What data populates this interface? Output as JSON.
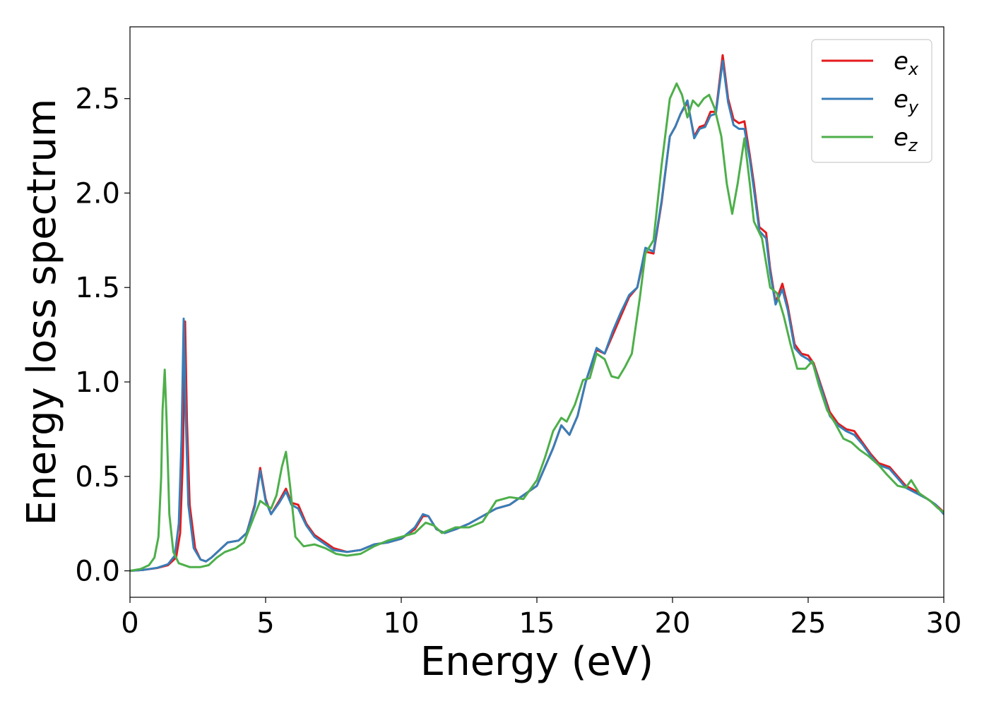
{
  "chart_data": {
    "type": "line",
    "xlabel": "Energy (eV)",
    "ylabel": "Energy loss spectrum",
    "xlim": [
      0,
      30
    ],
    "ylim": [
      -0.14,
      2.88
    ],
    "x_ticks": [
      0,
      5,
      10,
      15,
      20,
      25,
      30
    ],
    "y_ticks": [
      0.0,
      0.5,
      1.0,
      1.5,
      2.0,
      2.5
    ],
    "x_tick_labels": [
      "0",
      "5",
      "10",
      "15",
      "20",
      "25",
      "30"
    ],
    "y_tick_labels": [
      "0.0",
      "0.5",
      "1.0",
      "1.5",
      "2.0",
      "2.5"
    ],
    "grid": false,
    "legend_placement": "top-right",
    "series": [
      {
        "name": "e_x",
        "label_base": "e",
        "label_sub": "x",
        "color": "#e41a1c",
        "points": [
          [
            0.0,
            0.0
          ],
          [
            0.5,
            0.005
          ],
          [
            1.0,
            0.015
          ],
          [
            1.4,
            0.03
          ],
          [
            1.7,
            0.07
          ],
          [
            1.85,
            0.2
          ],
          [
            1.95,
            0.6
          ],
          [
            2.03,
            1.32
          ],
          [
            2.1,
            0.8
          ],
          [
            2.2,
            0.35
          ],
          [
            2.4,
            0.12
          ],
          [
            2.6,
            0.06
          ],
          [
            2.8,
            0.05
          ],
          [
            3.0,
            0.07
          ],
          [
            3.3,
            0.11
          ],
          [
            3.6,
            0.15
          ],
          [
            4.0,
            0.16
          ],
          [
            4.3,
            0.2
          ],
          [
            4.6,
            0.35
          ],
          [
            4.8,
            0.545
          ],
          [
            5.0,
            0.38
          ],
          [
            5.2,
            0.3
          ],
          [
            5.5,
            0.37
          ],
          [
            5.75,
            0.435
          ],
          [
            5.95,
            0.36
          ],
          [
            6.2,
            0.35
          ],
          [
            6.5,
            0.25
          ],
          [
            6.8,
            0.19
          ],
          [
            7.2,
            0.15
          ],
          [
            7.5,
            0.12
          ],
          [
            8.0,
            0.1
          ],
          [
            8.5,
            0.11
          ],
          [
            9.0,
            0.14
          ],
          [
            9.5,
            0.15
          ],
          [
            10.0,
            0.17
          ],
          [
            10.5,
            0.22
          ],
          [
            10.8,
            0.29
          ],
          [
            11.0,
            0.29
          ],
          [
            11.3,
            0.22
          ],
          [
            11.6,
            0.2
          ],
          [
            12.0,
            0.22
          ],
          [
            12.5,
            0.25
          ],
          [
            13.0,
            0.29
          ],
          [
            13.5,
            0.33
          ],
          [
            14.0,
            0.35
          ],
          [
            14.5,
            0.4
          ],
          [
            15.0,
            0.45
          ],
          [
            15.3,
            0.55
          ],
          [
            15.6,
            0.65
          ],
          [
            15.9,
            0.77
          ],
          [
            16.2,
            0.72
          ],
          [
            16.5,
            0.82
          ],
          [
            16.8,
            1.0
          ],
          [
            17.2,
            1.17
          ],
          [
            17.5,
            1.15
          ],
          [
            17.8,
            1.25
          ],
          [
            18.1,
            1.35
          ],
          [
            18.4,
            1.45
          ],
          [
            18.7,
            1.5
          ],
          [
            19.0,
            1.69
          ],
          [
            19.3,
            1.68
          ],
          [
            19.6,
            1.95
          ],
          [
            19.9,
            2.3
          ],
          [
            20.1,
            2.35
          ],
          [
            20.3,
            2.42
          ],
          [
            20.55,
            2.48
          ],
          [
            20.8,
            2.3
          ],
          [
            21.0,
            2.35
          ],
          [
            21.2,
            2.36
          ],
          [
            21.4,
            2.43
          ],
          [
            21.6,
            2.43
          ],
          [
            21.85,
            2.73
          ],
          [
            22.05,
            2.5
          ],
          [
            22.25,
            2.39
          ],
          [
            22.45,
            2.37
          ],
          [
            22.65,
            2.38
          ],
          [
            22.85,
            2.2
          ],
          [
            23.0,
            2.05
          ],
          [
            23.2,
            1.82
          ],
          [
            23.45,
            1.79
          ],
          [
            23.6,
            1.6
          ],
          [
            23.8,
            1.42
          ],
          [
            24.05,
            1.52
          ],
          [
            24.25,
            1.4
          ],
          [
            24.5,
            1.2
          ],
          [
            24.75,
            1.15
          ],
          [
            25.0,
            1.14
          ],
          [
            25.2,
            1.1
          ],
          [
            25.5,
            0.97
          ],
          [
            25.8,
            0.84
          ],
          [
            26.1,
            0.78
          ],
          [
            26.4,
            0.75
          ],
          [
            26.7,
            0.74
          ],
          [
            27.0,
            0.68
          ],
          [
            27.3,
            0.62
          ],
          [
            27.6,
            0.57
          ],
          [
            28.0,
            0.55
          ],
          [
            28.3,
            0.5
          ],
          [
            28.6,
            0.45
          ],
          [
            29.0,
            0.42
          ],
          [
            29.4,
            0.38
          ],
          [
            29.7,
            0.35
          ],
          [
            30.0,
            0.31
          ]
        ]
      },
      {
        "name": "e_y",
        "label_base": "e",
        "label_sub": "y",
        "color": "#377eb8",
        "points": [
          [
            0.0,
            0.0
          ],
          [
            0.5,
            0.005
          ],
          [
            1.0,
            0.016
          ],
          [
            1.4,
            0.035
          ],
          [
            1.65,
            0.08
          ],
          [
            1.8,
            0.25
          ],
          [
            1.9,
            0.7
          ],
          [
            1.98,
            1.335
          ],
          [
            2.06,
            0.8
          ],
          [
            2.15,
            0.35
          ],
          [
            2.35,
            0.12
          ],
          [
            2.6,
            0.06
          ],
          [
            2.8,
            0.05
          ],
          [
            3.0,
            0.07
          ],
          [
            3.3,
            0.11
          ],
          [
            3.6,
            0.15
          ],
          [
            4.0,
            0.16
          ],
          [
            4.3,
            0.2
          ],
          [
            4.6,
            0.34
          ],
          [
            4.8,
            0.53
          ],
          [
            5.0,
            0.37
          ],
          [
            5.2,
            0.3
          ],
          [
            5.5,
            0.36
          ],
          [
            5.75,
            0.42
          ],
          [
            5.95,
            0.35
          ],
          [
            6.2,
            0.33
          ],
          [
            6.5,
            0.24
          ],
          [
            6.8,
            0.18
          ],
          [
            7.2,
            0.14
          ],
          [
            7.5,
            0.11
          ],
          [
            8.0,
            0.1
          ],
          [
            8.5,
            0.11
          ],
          [
            9.0,
            0.14
          ],
          [
            9.5,
            0.15
          ],
          [
            10.0,
            0.17
          ],
          [
            10.5,
            0.23
          ],
          [
            10.8,
            0.3
          ],
          [
            11.0,
            0.29
          ],
          [
            11.3,
            0.22
          ],
          [
            11.6,
            0.2
          ],
          [
            12.0,
            0.22
          ],
          [
            12.5,
            0.25
          ],
          [
            13.0,
            0.29
          ],
          [
            13.5,
            0.33
          ],
          [
            14.0,
            0.35
          ],
          [
            14.5,
            0.4
          ],
          [
            15.0,
            0.45
          ],
          [
            15.3,
            0.55
          ],
          [
            15.6,
            0.65
          ],
          [
            15.9,
            0.77
          ],
          [
            16.2,
            0.72
          ],
          [
            16.5,
            0.82
          ],
          [
            16.8,
            1.0
          ],
          [
            17.2,
            1.18
          ],
          [
            17.5,
            1.15
          ],
          [
            17.8,
            1.27
          ],
          [
            18.1,
            1.37
          ],
          [
            18.4,
            1.46
          ],
          [
            18.7,
            1.5
          ],
          [
            19.0,
            1.71
          ],
          [
            19.3,
            1.69
          ],
          [
            19.6,
            1.96
          ],
          [
            19.9,
            2.3
          ],
          [
            20.1,
            2.35
          ],
          [
            20.3,
            2.42
          ],
          [
            20.55,
            2.49
          ],
          [
            20.8,
            2.29
          ],
          [
            21.0,
            2.34
          ],
          [
            21.2,
            2.35
          ],
          [
            21.4,
            2.41
          ],
          [
            21.6,
            2.42
          ],
          [
            21.85,
            2.7
          ],
          [
            22.05,
            2.48
          ],
          [
            22.25,
            2.36
          ],
          [
            22.45,
            2.34
          ],
          [
            22.65,
            2.34
          ],
          [
            22.85,
            2.18
          ],
          [
            23.0,
            2.02
          ],
          [
            23.2,
            1.8
          ],
          [
            23.45,
            1.76
          ],
          [
            23.6,
            1.58
          ],
          [
            23.8,
            1.41
          ],
          [
            24.05,
            1.49
          ],
          [
            24.25,
            1.38
          ],
          [
            24.5,
            1.18
          ],
          [
            24.75,
            1.14
          ],
          [
            25.0,
            1.12
          ],
          [
            25.2,
            1.09
          ],
          [
            25.5,
            0.96
          ],
          [
            25.8,
            0.82
          ],
          [
            26.1,
            0.77
          ],
          [
            26.4,
            0.74
          ],
          [
            26.7,
            0.72
          ],
          [
            27.0,
            0.67
          ],
          [
            27.3,
            0.61
          ],
          [
            27.6,
            0.56
          ],
          [
            28.0,
            0.54
          ],
          [
            28.3,
            0.49
          ],
          [
            28.6,
            0.44
          ],
          [
            29.0,
            0.41
          ],
          [
            29.4,
            0.38
          ],
          [
            29.7,
            0.35
          ],
          [
            30.0,
            0.3
          ]
        ]
      },
      {
        "name": "e_z",
        "label_base": "e",
        "label_sub": "z",
        "color": "#4daf4a",
        "points": [
          [
            0.0,
            0.0
          ],
          [
            0.4,
            0.01
          ],
          [
            0.7,
            0.03
          ],
          [
            0.9,
            0.07
          ],
          [
            1.05,
            0.18
          ],
          [
            1.15,
            0.5
          ],
          [
            1.2,
            0.85
          ],
          [
            1.28,
            1.065
          ],
          [
            1.35,
            0.8
          ],
          [
            1.45,
            0.3
          ],
          [
            1.6,
            0.1
          ],
          [
            1.8,
            0.04
          ],
          [
            2.2,
            0.02
          ],
          [
            2.6,
            0.02
          ],
          [
            2.9,
            0.03
          ],
          [
            3.2,
            0.07
          ],
          [
            3.5,
            0.1
          ],
          [
            3.9,
            0.12
          ],
          [
            4.2,
            0.15
          ],
          [
            4.5,
            0.26
          ],
          [
            4.8,
            0.37
          ],
          [
            5.0,
            0.35
          ],
          [
            5.2,
            0.33
          ],
          [
            5.4,
            0.4
          ],
          [
            5.6,
            0.55
          ],
          [
            5.75,
            0.63
          ],
          [
            5.9,
            0.45
          ],
          [
            6.1,
            0.18
          ],
          [
            6.4,
            0.13
          ],
          [
            6.8,
            0.14
          ],
          [
            7.2,
            0.12
          ],
          [
            7.6,
            0.09
          ],
          [
            8.0,
            0.08
          ],
          [
            8.5,
            0.09
          ],
          [
            9.0,
            0.13
          ],
          [
            9.5,
            0.16
          ],
          [
            10.0,
            0.18
          ],
          [
            10.5,
            0.2
          ],
          [
            10.9,
            0.255
          ],
          [
            11.2,
            0.24
          ],
          [
            11.5,
            0.2
          ],
          [
            12.0,
            0.23
          ],
          [
            12.5,
            0.23
          ],
          [
            13.0,
            0.26
          ],
          [
            13.5,
            0.37
          ],
          [
            14.0,
            0.39
          ],
          [
            14.5,
            0.38
          ],
          [
            15.0,
            0.48
          ],
          [
            15.3,
            0.6
          ],
          [
            15.6,
            0.74
          ],
          [
            15.9,
            0.81
          ],
          [
            16.1,
            0.79
          ],
          [
            16.4,
            0.88
          ],
          [
            16.7,
            1.01
          ],
          [
            16.95,
            1.02
          ],
          [
            17.2,
            1.15
          ],
          [
            17.5,
            1.12
          ],
          [
            17.75,
            1.03
          ],
          [
            18.0,
            1.02
          ],
          [
            18.25,
            1.08
          ],
          [
            18.5,
            1.15
          ],
          [
            18.8,
            1.45
          ],
          [
            19.0,
            1.68
          ],
          [
            19.3,
            1.75
          ],
          [
            19.6,
            2.15
          ],
          [
            19.9,
            2.5
          ],
          [
            20.15,
            2.58
          ],
          [
            20.35,
            2.52
          ],
          [
            20.55,
            2.4
          ],
          [
            20.75,
            2.49
          ],
          [
            20.95,
            2.46
          ],
          [
            21.15,
            2.5
          ],
          [
            21.35,
            2.52
          ],
          [
            21.55,
            2.45
          ],
          [
            21.8,
            2.3
          ],
          [
            22.0,
            2.05
          ],
          [
            22.2,
            1.89
          ],
          [
            22.4,
            2.05
          ],
          [
            22.65,
            2.29
          ],
          [
            22.85,
            2.05
          ],
          [
            23.0,
            1.85
          ],
          [
            23.3,
            1.76
          ],
          [
            23.6,
            1.5
          ],
          [
            23.85,
            1.47
          ],
          [
            24.1,
            1.35
          ],
          [
            24.35,
            1.2
          ],
          [
            24.6,
            1.07
          ],
          [
            24.9,
            1.07
          ],
          [
            25.15,
            1.11
          ],
          [
            25.4,
            0.98
          ],
          [
            25.7,
            0.85
          ],
          [
            26.0,
            0.78
          ],
          [
            26.3,
            0.7
          ],
          [
            26.6,
            0.68
          ],
          [
            26.9,
            0.64
          ],
          [
            27.2,
            0.61
          ],
          [
            27.6,
            0.56
          ],
          [
            27.9,
            0.51
          ],
          [
            28.3,
            0.45
          ],
          [
            28.6,
            0.44
          ],
          [
            28.8,
            0.48
          ],
          [
            29.1,
            0.41
          ],
          [
            29.5,
            0.37
          ],
          [
            29.8,
            0.33
          ],
          [
            30.0,
            0.31
          ]
        ]
      }
    ]
  }
}
